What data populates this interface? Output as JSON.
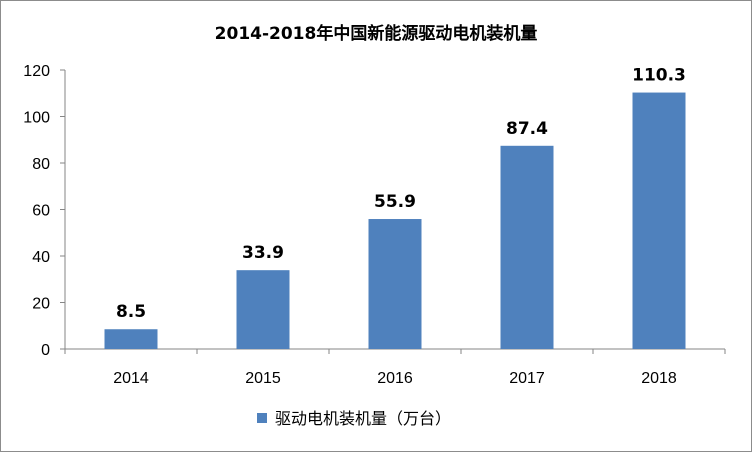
{
  "chart_data": {
    "type": "bar",
    "title": "2014-2018年中国新能源驱动电机装机量",
    "categories": [
      "2014",
      "2015",
      "2016",
      "2017",
      "2018"
    ],
    "series": [
      {
        "name": "驱动电机装机量（万台）",
        "values": [
          8.5,
          33.9,
          55.9,
          87.4,
          110.3
        ]
      }
    ],
    "data_labels": [
      "8.5",
      "33.9",
      "55.9",
      "87.4",
      "110.3"
    ],
    "ylim": [
      0,
      120
    ],
    "yticks": [
      0,
      20,
      40,
      60,
      80,
      100,
      120
    ],
    "grid": false,
    "legend_position": "bottom",
    "bar_color": "#4F81BD",
    "xlabel": "",
    "ylabel": ""
  }
}
